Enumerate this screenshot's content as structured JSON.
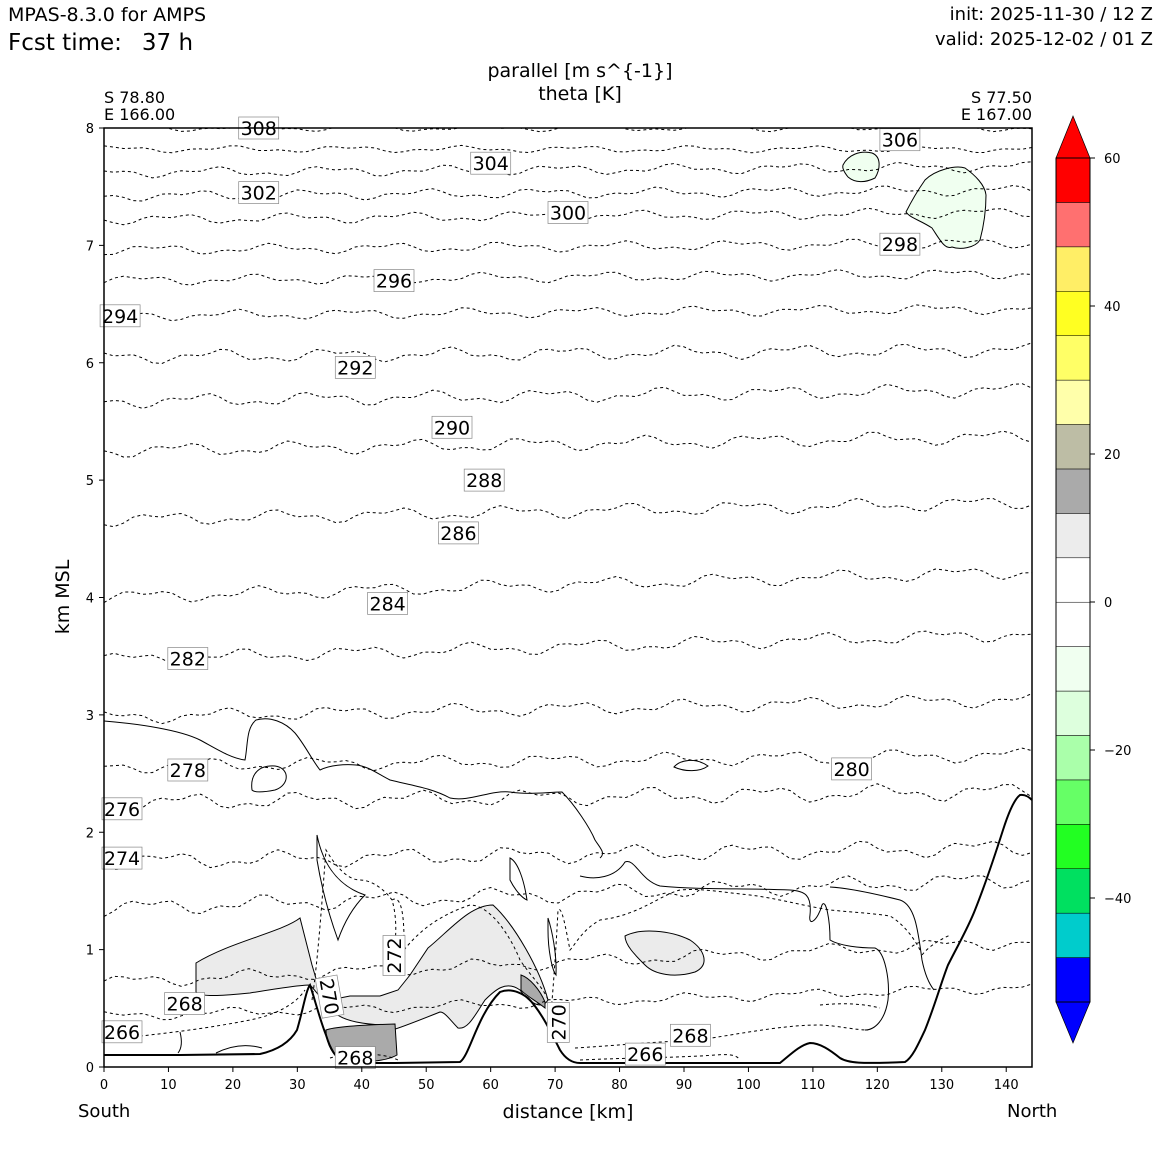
{
  "header": {
    "model": "MPAS-8.3.0 for AMPS",
    "fcst_label": "Fcst time:",
    "fcst_value": "37 h",
    "init": "init: 2025-11-30 / 12 Z",
    "valid": "valid: 2025-12-02 / 01 Z"
  },
  "endpoints": {
    "left_lat": "S 78.80",
    "left_lon": "E 166.00",
    "right_lat": "S 77.50",
    "right_lon": "E 167.00",
    "left_dir": "South",
    "right_dir": "North"
  },
  "chart_data": {
    "type": "contour",
    "title": "parallel [m s^{-1}]",
    "subtitle": "theta [K]",
    "xlabel": "distance [km]",
    "ylabel": "km MSL",
    "xlim": [
      0,
      144
    ],
    "ylim": [
      0,
      8
    ],
    "x_ticks": [
      0,
      10,
      20,
      30,
      40,
      50,
      60,
      70,
      80,
      90,
      100,
      110,
      120,
      130,
      140
    ],
    "y_ticks": [
      0,
      1,
      2,
      3,
      4,
      5,
      6,
      7,
      8
    ],
    "grid": false,
    "theta_labels": [
      {
        "label": "308",
        "x": 24,
        "y": 8.0
      },
      {
        "label": "306",
        "x": 123.5,
        "y": 7.9
      },
      {
        "label": "304",
        "x": 60,
        "y": 7.7
      },
      {
        "label": "302",
        "x": 24,
        "y": 7.45
      },
      {
        "label": "300",
        "x": 72,
        "y": 7.28
      },
      {
        "label": "298",
        "x": 123.5,
        "y": 7.01
      },
      {
        "label": "296",
        "x": 45,
        "y": 6.7
      },
      {
        "label": "294",
        "x": 2.5,
        "y": 6.4
      },
      {
        "label": "292",
        "x": 39,
        "y": 5.96
      },
      {
        "label": "290",
        "x": 54,
        "y": 5.45
      },
      {
        "label": "288",
        "x": 59,
        "y": 5.0
      },
      {
        "label": "286",
        "x": 55,
        "y": 4.55
      },
      {
        "label": "284",
        "x": 44,
        "y": 3.95
      },
      {
        "label": "282",
        "x": 13,
        "y": 3.48
      },
      {
        "label": "280",
        "x": 116,
        "y": 2.54
      },
      {
        "label": "278",
        "x": 13,
        "y": 2.53
      },
      {
        "label": "276",
        "x": 2.8,
        "y": 2.2
      },
      {
        "label": "274",
        "x": 2.8,
        "y": 1.78
      },
      {
        "label": "272",
        "x": 45,
        "y": 0.95
      },
      {
        "label": "270",
        "x": 35,
        "y": 0.6
      },
      {
        "label": "270",
        "x": 70.5,
        "y": 0.38
      },
      {
        "label": "268",
        "x": 12.5,
        "y": 0.54
      },
      {
        "label": "268",
        "x": 39,
        "y": 0.08
      },
      {
        "label": "268",
        "x": 91,
        "y": 0.27
      },
      {
        "label": "266",
        "x": 2.8,
        "y": 0.3
      },
      {
        "label": "266",
        "x": 84,
        "y": 0.11
      }
    ],
    "colorbar": {
      "ticks": [
        60,
        40,
        20,
        0,
        -20,
        -40
      ],
      "tick_labels": [
        "60",
        "40",
        "20",
        "0",
        "−20",
        "−40"
      ],
      "levels": [
        -50,
        -45,
        -40,
        -35,
        -30,
        -25,
        -20,
        -15,
        -10,
        -5,
        0,
        5,
        10,
        15,
        20,
        25,
        30,
        35,
        40,
        45,
        50,
        55,
        60
      ],
      "colors": [
        "#0000ff",
        "#00cccc",
        "#00e060",
        "#22ff22",
        "#66ff66",
        "#aaffaa",
        "#ddffdd",
        "#f0fff0",
        "#ffffff",
        "#ffffff",
        "#ececec",
        "#aaaaaa",
        "#bdbda5",
        "#ffffaa",
        "#ffff66",
        "#ffff22",
        "#ffee66",
        "#ff7070",
        "#ff0000"
      ],
      "under_color": "#0000ff",
      "over_color": "#ff0000"
    }
  }
}
